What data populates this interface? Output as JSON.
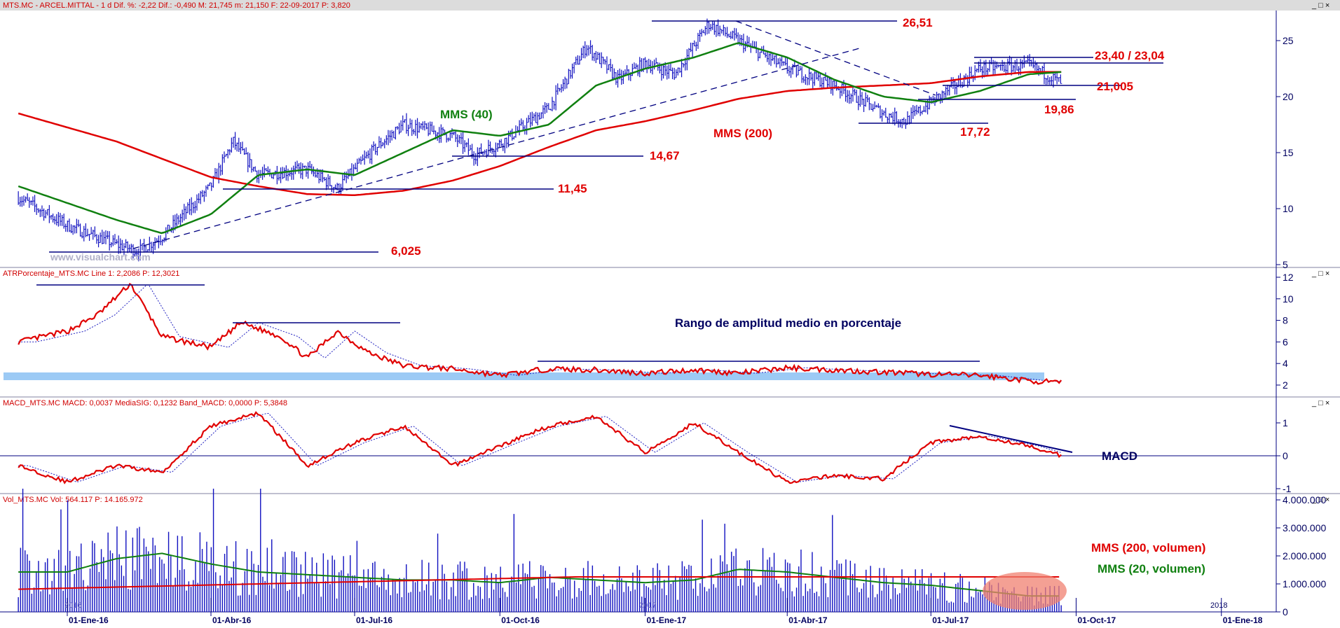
{
  "colors": {
    "price_bars": "#1010c0",
    "mms200": "#e00000",
    "mms40": "#108010",
    "axis": "#000080",
    "annotation_red": "#e00000",
    "annotation_green": "#108010",
    "annotation_navy": "#000060",
    "band": "#9ccaf5",
    "highlight": "#f08070",
    "header_bg": "#dcdcdc"
  },
  "header": {
    "text": "MTS.MC - ARCEL.MITTAL - 1 d  Dif. %: -2,22  Dif.: -0,490  M: 21,745  m: 21,150  F: 22-09-2017  P: 3,820",
    "controls": "_ □ ×"
  },
  "watermark": "www.visualchart.com",
  "panels": {
    "price": {
      "annotations": {
        "mms40": "MMS (40)",
        "mms200": "MMS (200)",
        "lvl_2651": "26,51",
        "lvl_2340": "23,40 / 23,04",
        "lvl_21005": "21,005",
        "lvl_1986": "19,86",
        "lvl_1772": "17,72",
        "lvl_1467": "14,67",
        "lvl_1145": "11,45",
        "lvl_6025": "6,025"
      },
      "y_ticks": [
        "25",
        "20",
        "15",
        "10",
        "5"
      ]
    },
    "atr": {
      "header": "ATRPorcentaje_MTS.MC  Line 1: 2,2086  P: 12,3021",
      "title": "Rango de amplitud medio en porcentaje",
      "y_ticks": [
        "12",
        "10",
        "8",
        "6",
        "4",
        "2"
      ]
    },
    "macd": {
      "header": "MACD_MTS.MC  MACD: 0,0037  MediaSIG: 0,1232  Band_MACD: 0,0000  P: 5,3848",
      "label": "MACD",
      "y_ticks": [
        "1",
        "0",
        "-1"
      ]
    },
    "volume": {
      "header": "Vol_MTS.MC  Vol: 564.117  P: 14.165.972",
      "mms200": "MMS (200, volumen)",
      "mms20": "MMS (20, volumen)",
      "y_ticks": [
        "4.000.000",
        "3.000.000",
        "2.000.000",
        "1.000.000",
        "0"
      ],
      "year_labels": [
        "2016",
        "2017",
        "2018"
      ]
    }
  },
  "x_ticks": [
    "01-Ene-16",
    "01-Abr-16",
    "01-Jul-16",
    "01-Oct-16",
    "01-Ene-17",
    "01-Abr-17",
    "01-Jul-17",
    "01-Oct-17",
    "01-Ene-18"
  ],
  "chart_data": [
    {
      "type": "line",
      "name": "price",
      "x": [
        "2015-12-01",
        "2016-01-01",
        "2016-02-01",
        "2016-02-15",
        "2016-03-01",
        "2016-04-01",
        "2016-04-15",
        "2016-05-01",
        "2016-06-01",
        "2016-06-20",
        "2016-07-01",
        "2016-07-15",
        "2016-08-01",
        "2016-09-01",
        "2016-09-15",
        "2016-10-01",
        "2016-11-01",
        "2016-11-25",
        "2016-12-15",
        "2017-01-01",
        "2017-01-20",
        "2017-02-10",
        "2017-03-01",
        "2017-04-01",
        "2017-05-01",
        "2017-06-01",
        "2017-06-15",
        "2017-07-01",
        "2017-08-01",
        "2017-09-01",
        "2017-09-22"
      ],
      "y_close": [
        11.0,
        8.5,
        6.8,
        6.2,
        7.5,
        12.0,
        16.0,
        13.0,
        13.5,
        11.8,
        13.5,
        15.5,
        17.5,
        16.5,
        14.8,
        15.8,
        19.0,
        24.5,
        21.5,
        23.0,
        22.0,
        26.5,
        25.0,
        22.5,
        21.0,
        18.5,
        17.8,
        19.5,
        22.5,
        22.8,
        21.2
      ],
      "ylim": [
        5,
        27
      ]
    },
    {
      "type": "line",
      "name": "MMS (40)",
      "x": [
        "2015-12-01",
        "2016-01-01",
        "2016-02-01",
        "2016-03-01",
        "2016-04-01",
        "2016-05-01",
        "2016-06-01",
        "2016-07-01",
        "2016-08-01",
        "2016-09-01",
        "2016-10-01",
        "2016-11-01",
        "2016-12-01",
        "2017-01-01",
        "2017-02-01",
        "2017-03-01",
        "2017-04-01",
        "2017-05-01",
        "2017-06-01",
        "2017-07-01",
        "2017-08-01",
        "2017-09-01",
        "2017-09-22"
      ],
      "values": [
        12.0,
        10.5,
        9.0,
        7.8,
        9.5,
        13.0,
        13.5,
        13.0,
        15.0,
        17.0,
        16.5,
        17.5,
        21.0,
        22.5,
        23.5,
        24.8,
        23.5,
        21.5,
        20.0,
        19.5,
        20.5,
        22.0,
        22.2
      ]
    },
    {
      "type": "line",
      "name": "MMS (200)",
      "x": [
        "2015-12-01",
        "2016-02-01",
        "2016-04-01",
        "2016-05-01",
        "2016-06-01",
        "2016-07-01",
        "2016-08-01",
        "2016-09-01",
        "2016-10-01",
        "2016-11-01",
        "2016-12-01",
        "2017-01-01",
        "2017-02-01",
        "2017-03-01",
        "2017-04-01",
        "2017-05-01",
        "2017-06-01",
        "2017-07-01",
        "2017-08-01",
        "2017-09-01",
        "2017-09-22"
      ],
      "values": [
        18.5,
        16.0,
        12.8,
        12.0,
        11.3,
        11.2,
        11.6,
        12.5,
        13.8,
        15.5,
        17.0,
        17.8,
        18.8,
        19.8,
        20.5,
        20.8,
        21.0,
        21.2,
        21.8,
        22.2,
        22.2
      ]
    },
    {
      "type": "line",
      "name": "ATR porcentaje",
      "x": [
        "2015-12-01",
        "2016-01-01",
        "2016-01-20",
        "2016-02-10",
        "2016-03-01",
        "2016-04-01",
        "2016-04-20",
        "2016-05-15",
        "2016-06-01",
        "2016-06-20",
        "2016-07-10",
        "2016-08-01",
        "2016-09-01",
        "2016-10-01",
        "2016-11-01",
        "2016-12-01",
        "2017-01-01",
        "2017-02-01",
        "2017-03-01",
        "2017-04-01",
        "2017-05-01",
        "2017-06-01",
        "2017-07-01",
        "2017-08-01",
        "2017-09-01",
        "2017-09-22"
      ],
      "values": [
        6.0,
        7.0,
        8.5,
        11.4,
        6.5,
        5.5,
        7.8,
        6.5,
        4.5,
        7.0,
        5.0,
        3.8,
        3.5,
        2.9,
        3.5,
        3.4,
        3.1,
        3.4,
        3.1,
        3.6,
        3.4,
        3.2,
        3.0,
        2.9,
        2.4,
        2.2
      ],
      "ylim": [
        1,
        12
      ]
    },
    {
      "type": "line",
      "name": "MACD",
      "x": [
        "2015-12-01",
        "2016-01-01",
        "2016-02-01",
        "2016-03-01",
        "2016-04-01",
        "2016-05-01",
        "2016-06-01",
        "2016-07-01",
        "2016-08-01",
        "2016-09-01",
        "2016-10-01",
        "2016-11-01",
        "2016-12-01",
        "2017-01-01",
        "2017-02-01",
        "2017-03-01",
        "2017-04-01",
        "2017-05-01",
        "2017-06-01",
        "2017-07-01",
        "2017-08-01",
        "2017-09-01",
        "2017-09-22"
      ],
      "values": [
        -0.3,
        -0.8,
        -0.3,
        -0.5,
        0.9,
        1.3,
        -0.3,
        0.4,
        0.9,
        -0.3,
        0.3,
        0.9,
        1.2,
        0.1,
        1.0,
        0.1,
        -0.8,
        -0.6,
        -0.7,
        0.4,
        0.6,
        0.3,
        0.0
      ],
      "ylim": [
        -1.1,
        1.4
      ]
    },
    {
      "type": "bar",
      "name": "volumen",
      "x": [
        "2016-01",
        "2016-02",
        "2016-03",
        "2016-04",
        "2016-05",
        "2016-06",
        "2016-07",
        "2016-08",
        "2016-09",
        "2016-10",
        "2016-11",
        "2016-12",
        "2017-01",
        "2017-02",
        "2017-03",
        "2017-04",
        "2017-05",
        "2017-06",
        "2017-07",
        "2017-08",
        "2017-09"
      ],
      "values": [
        1500000,
        2000000,
        2200000,
        1800000,
        1500000,
        1400000,
        1300000,
        1200000,
        1200000,
        1100000,
        1300000,
        1200000,
        1100000,
        1200000,
        1600000,
        1500000,
        1300000,
        1100000,
        1000000,
        800000,
        600000
      ],
      "ylim": [
        0,
        4500000
      ]
    }
  ]
}
